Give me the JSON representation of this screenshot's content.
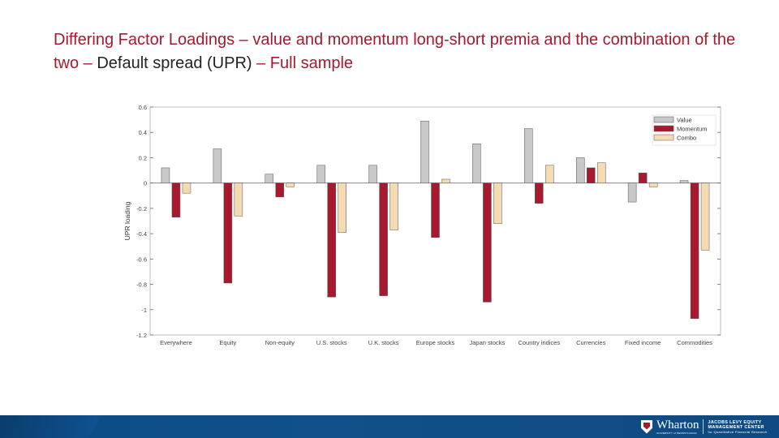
{
  "slide": {
    "title_part1": "Differing Factor Loadings – value and momentum long-short premia and the combination of the two – ",
    "title_part2": "Default spread (UPR)",
    "title_part3": " – Full sample"
  },
  "chart_data": {
    "type": "bar",
    "title": "",
    "xlabel": "",
    "ylabel": "UPR loading",
    "ylim": [
      -1.2,
      0.6
    ],
    "yticks": [
      0.6,
      0.4,
      0.2,
      0,
      -0.2,
      -0.4,
      -0.6,
      -0.8,
      -1,
      -1.2
    ],
    "ytick_labels": [
      "0.6",
      "0.4",
      "0.2",
      "0",
      "-0.2",
      "-0.4",
      "-0.6",
      "-0.8",
      "-1",
      "-1.2"
    ],
    "legend_position": "top-right",
    "categories": [
      "Everywhere",
      "Equity",
      "Non-equity",
      "U.S. stocks",
      "U.K. stocks",
      "Europe stocks",
      "Japan stocks",
      "Country indices",
      "Currencies",
      "Fixed income",
      "Commodities"
    ],
    "series": [
      {
        "name": "Value",
        "color": "#c8c8c8",
        "values": [
          0.12,
          0.27,
          0.07,
          0.14,
          0.14,
          0.49,
          0.31,
          0.43,
          0.2,
          -0.15,
          0.02
        ]
      },
      {
        "name": "Momentum",
        "color": "#a6192e",
        "values": [
          -0.27,
          -0.79,
          -0.11,
          -0.9,
          -0.89,
          -0.43,
          -0.94,
          -0.16,
          0.12,
          0.08,
          -1.07
        ]
      },
      {
        "name": "Combo",
        "color": "#f3dcb4",
        "values": [
          -0.08,
          -0.26,
          -0.03,
          -0.39,
          -0.37,
          0.03,
          -0.32,
          0.14,
          0.16,
          -0.03,
          -0.53
        ]
      }
    ]
  },
  "footer": {
    "logo_name": "Wharton",
    "logo_sub": "UNIVERSITY of PENNSYLVANIA",
    "center_line1": "JACOBS LEVY EQUITY",
    "center_line2": "MANAGEMENT CENTER",
    "center_line3": "for Quantitative Financial Research",
    "colors": {
      "bar": "#0c4c87",
      "accent": "#a6192e"
    }
  }
}
